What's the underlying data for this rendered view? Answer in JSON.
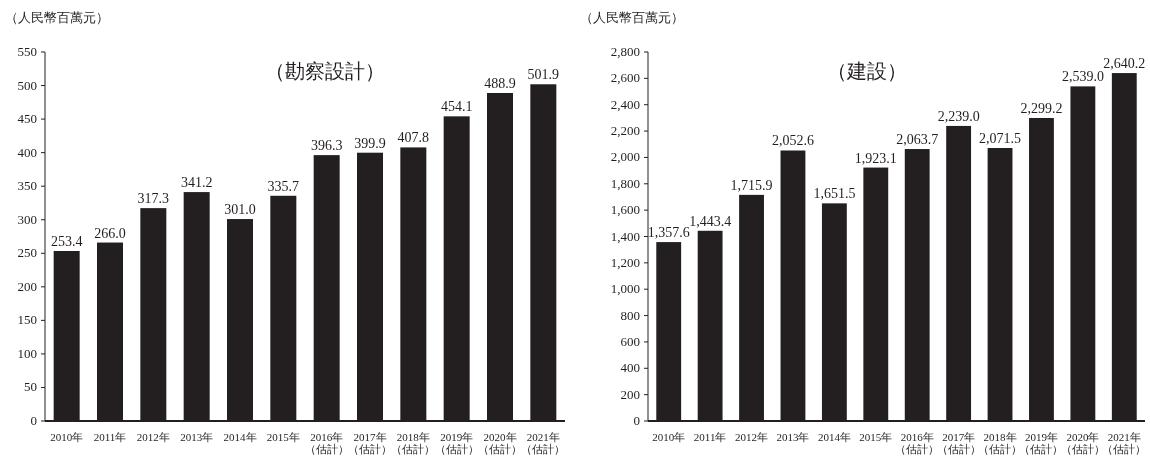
{
  "chart_data": [
    {
      "type": "bar",
      "title": "（勘察設計）",
      "ylabel": "（人民幣百萬元）",
      "color": "#231f20",
      "categories": [
        "2010年",
        "2011年",
        "2012年",
        "2013年",
        "2014年",
        "2015年",
        "2016年（估計）",
        "2017年（估計）",
        "2018年（估計）",
        "2019年（估計）",
        "2020年（估計）",
        "2021年（估計）"
      ],
      "values": [
        253.4,
        266.0,
        317.3,
        341.2,
        301.0,
        335.7,
        396.3,
        399.9,
        407.8,
        454.1,
        488.9,
        501.9
      ],
      "value_labels": [
        "253.4",
        "266.0",
        "317.3",
        "341.2",
        "301.0",
        "335.7",
        "396.3",
        "399.9",
        "407.8",
        "454.1",
        "488.9",
        "501.9"
      ],
      "ylim": [
        0,
        550
      ],
      "yticks": [
        0,
        50,
        100,
        150,
        200,
        250,
        300,
        350,
        400,
        450,
        500,
        550
      ]
    },
    {
      "type": "bar",
      "title": "（建設）",
      "ylabel": "（人民幣百萬元）",
      "color": "#231f20",
      "categories": [
        "2010年",
        "2011年",
        "2012年",
        "2013年",
        "2014年",
        "2015年",
        "2016年（估計）",
        "2017年（估計）",
        "2018年（估計）",
        "2019年（估計）",
        "2020年（估計）",
        "2021年（估計）"
      ],
      "values": [
        1357.6,
        1443.4,
        1715.9,
        2052.6,
        1651.5,
        1923.1,
        2063.7,
        2239.0,
        2071.5,
        2299.2,
        2539.0,
        2640.2
      ],
      "value_labels": [
        "1,357.6",
        "1,443.4",
        "1,715.9",
        "2,052.6",
        "1,651.5",
        "1,923.1",
        "2,063.7",
        "2,239.0",
        "2,071.5",
        "2,299.2",
        "2,539.0",
        "2,640.2"
      ],
      "ylim": [
        0,
        2800
      ],
      "yticks": [
        0,
        {
          "value": 200,
          "label": "200"
        },
        {
          "value": 400,
          "label": "400"
        },
        {
          "value": 600,
          "label": "600"
        },
        {
          "value": 800,
          "label": "800"
        },
        {
          "value": 1000,
          "label": "1,000"
        },
        {
          "value": 1200,
          "label": "1,200"
        },
        {
          "value": 1400,
          "label": "1,400"
        },
        {
          "value": 1600,
          "label": "1,600"
        },
        {
          "value": 1800,
          "label": "1,800"
        },
        {
          "value": 2000,
          "label": "2,000"
        },
        {
          "value": 2200,
          "label": "2,200"
        },
        {
          "value": 2400,
          "label": "2,400"
        },
        {
          "value": 2600,
          "label": "2,600"
        },
        {
          "value": 2800,
          "label": "2,800"
        }
      ]
    }
  ]
}
